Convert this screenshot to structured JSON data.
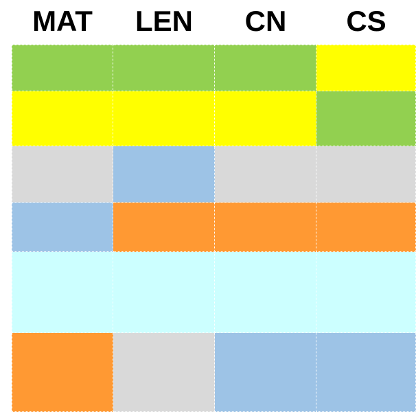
{
  "table": {
    "headers": [
      "MAT",
      "LEN",
      "CN",
      "CS"
    ],
    "rows": [
      [
        "#92d050",
        "#92d050",
        "#92d050",
        "#ffff00"
      ],
      [
        "#ffff00",
        "#ffff00",
        "#ffff00",
        "#92d050"
      ],
      [
        "#d9d9d9",
        "#9dc3e6",
        "#d9d9d9",
        "#d9d9d9"
      ],
      [
        "#9dc3e6",
        "#ff9933",
        "#ff9933",
        "#ff9933"
      ],
      [
        "#ccffff",
        "#ccffff",
        "#ccffff",
        "#ccffff"
      ],
      [
        "#ff9933",
        "#d9d9d9",
        "#9dc3e6",
        "#9dc3e6"
      ]
    ]
  }
}
